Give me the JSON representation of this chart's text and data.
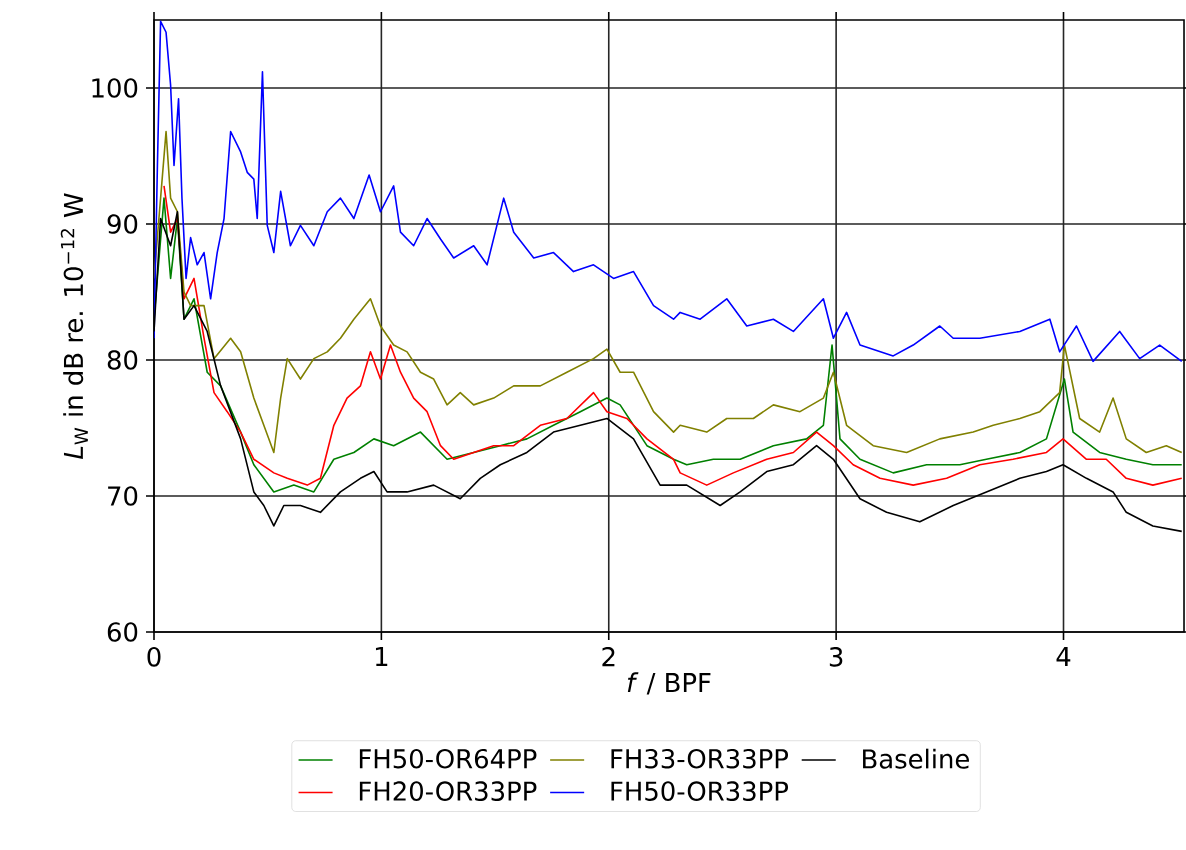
{
  "chart_data": {
    "type": "line",
    "xlabel": "*f* / BPF",
    "ylabel": "*L*$_{W}$ in dB re. 10$^{−12}$ W",
    "xlim": [
      0,
      4.53
    ],
    "ylim": [
      60,
      105
    ],
    "xticks": [
      0,
      1,
      2,
      3,
      4
    ],
    "yticks": [
      60,
      70,
      80,
      90,
      100
    ],
    "grid": true,
    "legend": "bottom",
    "marker": "none",
    "line_style": "solid",
    "series": [
      {
        "name": "FH50-OR64PP",
        "color": "#008000",
        "x": [
          0,
          0.044,
          0.073,
          0.103,
          0.132,
          0.176,
          0.234,
          0.293,
          0.381,
          0.439,
          0.527,
          0.615,
          0.703,
          0.791,
          0.879,
          0.967,
          1.054,
          1.172,
          1.289,
          1.406,
          1.523,
          1.64,
          1.757,
          1.875,
          1.992,
          2.05,
          2.168,
          2.285,
          2.343,
          2.46,
          2.578,
          2.724,
          2.87,
          2.944,
          2.982,
          3.017,
          3.105,
          3.251,
          3.398,
          3.544,
          3.661,
          3.808,
          3.925,
          4.004,
          4.042,
          4.159,
          4.276,
          4.393,
          4.52
        ],
        "values": [
          83,
          91.9,
          86,
          90.4,
          83,
          84.5,
          79.1,
          78.1,
          74.7,
          72.3,
          70.3,
          70.8,
          70.3,
          72.7,
          73.2,
          74.2,
          73.7,
          74.7,
          72.7,
          73.2,
          73.7,
          74.2,
          75.2,
          76.2,
          77.2,
          76.7,
          73.7,
          72.7,
          72.3,
          72.7,
          72.7,
          73.7,
          74.2,
          75.2,
          81.1,
          74.2,
          72.7,
          71.7,
          72.3,
          72.3,
          72.7,
          73.2,
          74.2,
          78.6,
          74.7,
          73.2,
          72.7,
          72.3,
          72.3
        ]
      },
      {
        "name": "FH20-OR33PP",
        "color": "#ff0000",
        "x": [
          0.044,
          0.073,
          0.103,
          0.132,
          0.176,
          0.22,
          0.264,
          0.322,
          0.381,
          0.439,
          0.527,
          0.586,
          0.674,
          0.732,
          0.791,
          0.849,
          0.908,
          0.952,
          0.996,
          1.04,
          1.084,
          1.142,
          1.201,
          1.26,
          1.318,
          1.406,
          1.494,
          1.582,
          1.699,
          1.816,
          1.933,
          1.992,
          2.08,
          2.168,
          2.285,
          2.314,
          2.431,
          2.548,
          2.695,
          2.812,
          2.914,
          2.988,
          3.075,
          3.193,
          3.339,
          3.486,
          3.632,
          3.778,
          3.925,
          3.998,
          4.101,
          4.188,
          4.276,
          4.393,
          4.52
        ],
        "values": [
          92.8,
          89.4,
          90.4,
          84.5,
          86,
          81.6,
          77.6,
          76.2,
          74.7,
          72.7,
          71.7,
          71.3,
          70.8,
          71.3,
          75.2,
          77.2,
          78.1,
          80.6,
          78.6,
          81.1,
          79.1,
          77.2,
          76.2,
          73.7,
          72.7,
          73.2,
          73.7,
          73.7,
          75.2,
          75.7,
          77.6,
          76.2,
          75.7,
          74.2,
          72.7,
          71.7,
          70.8,
          71.7,
          72.7,
          73.2,
          74.7,
          73.7,
          72.3,
          71.3,
          70.8,
          71.3,
          72.3,
          72.7,
          73.2,
          74.2,
          72.7,
          72.7,
          71.3,
          70.8,
          71.3
        ]
      },
      {
        "name": "FH33-OR33PP",
        "color": "#808000",
        "x": [
          0,
          0.029,
          0.053,
          0.073,
          0.103,
          0.132,
          0.161,
          0.22,
          0.264,
          0.337,
          0.381,
          0.439,
          0.483,
          0.527,
          0.557,
          0.586,
          0.644,
          0.703,
          0.762,
          0.82,
          0.879,
          0.952,
          0.996,
          1.054,
          1.113,
          1.172,
          1.23,
          1.289,
          1.347,
          1.406,
          1.494,
          1.582,
          1.699,
          1.816,
          1.933,
          1.992,
          2.05,
          2.109,
          2.197,
          2.285,
          2.314,
          2.431,
          2.519,
          2.636,
          2.724,
          2.841,
          2.944,
          2.988,
          3.046,
          3.163,
          3.31,
          3.456,
          3.603,
          3.691,
          3.808,
          3.896,
          3.983,
          4.004,
          4.071,
          4.159,
          4.218,
          4.276,
          4.364,
          4.452,
          4.52
        ],
        "values": [
          86,
          91.9,
          96.8,
          91.9,
          90.9,
          85,
          84,
          84,
          80.1,
          81.6,
          80.6,
          77.2,
          75.2,
          73.2,
          77.2,
          80.1,
          78.6,
          80.1,
          80.6,
          81.6,
          83,
          84.5,
          82.5,
          81.1,
          80.6,
          79.1,
          78.6,
          76.7,
          77.6,
          76.7,
          77.2,
          78.1,
          78.1,
          79.1,
          80.1,
          80.8,
          79.1,
          79.1,
          76.2,
          74.7,
          75.2,
          74.7,
          75.7,
          75.7,
          76.7,
          76.2,
          77.2,
          79.1,
          75.2,
          73.7,
          73.2,
          74.2,
          74.7,
          75.2,
          75.7,
          76.2,
          77.6,
          81.1,
          75.7,
          74.7,
          77.2,
          74.2,
          73.2,
          73.7,
          73.2
        ]
      },
      {
        "name": "FH50-OR33PP",
        "color": "#0000ff",
        "x": [
          0,
          0.015,
          0.029,
          0.053,
          0.073,
          0.088,
          0.108,
          0.123,
          0.141,
          0.161,
          0.19,
          0.22,
          0.249,
          0.278,
          0.308,
          0.337,
          0.381,
          0.41,
          0.439,
          0.454,
          0.477,
          0.498,
          0.527,
          0.557,
          0.6,
          0.644,
          0.703,
          0.762,
          0.82,
          0.879,
          0.946,
          0.996,
          1.054,
          1.084,
          1.142,
          1.201,
          1.26,
          1.318,
          1.406,
          1.465,
          1.538,
          1.582,
          1.67,
          1.757,
          1.845,
          1.933,
          2.021,
          2.109,
          2.197,
          2.285,
          2.314,
          2.402,
          2.519,
          2.607,
          2.724,
          2.812,
          2.944,
          2.988,
          3.046,
          3.105,
          3.251,
          3.339,
          3.456,
          3.515,
          3.632,
          3.808,
          3.94,
          3.983,
          4.057,
          4.13,
          4.247,
          4.335,
          4.423,
          4.52
        ],
        "values": [
          81.6,
          94.3,
          104.9,
          104.1,
          100.2,
          94.3,
          99.2,
          91.9,
          86,
          89,
          87,
          87.9,
          84.5,
          87.9,
          90.4,
          96.8,
          95.3,
          93.8,
          93.3,
          90.4,
          101.2,
          89.9,
          87.9,
          92.4,
          88.4,
          89.9,
          88.4,
          90.9,
          91.9,
          90.4,
          93.6,
          90.9,
          92.8,
          89.4,
          88.4,
          90.4,
          88.9,
          87.5,
          88.4,
          87,
          91.9,
          89.4,
          87.5,
          87.9,
          86.5,
          87,
          86,
          86.5,
          84,
          83,
          83.5,
          83,
          84.5,
          82.5,
          83,
          82.1,
          84.5,
          81.6,
          83.5,
          81.1,
          80.3,
          81.1,
          82.5,
          81.6,
          81.6,
          82.1,
          83,
          80.6,
          82.5,
          79.9,
          82.1,
          80.1,
          81.1,
          79.9
        ]
      },
      {
        "name": "Baseline",
        "color": "#000000",
        "x": [
          0,
          0.029,
          0.073,
          0.103,
          0.132,
          0.176,
          0.234,
          0.293,
          0.381,
          0.439,
          0.483,
          0.527,
          0.571,
          0.644,
          0.732,
          0.82,
          0.908,
          0.967,
          1.025,
          1.113,
          1.23,
          1.347,
          1.435,
          1.523,
          1.64,
          1.757,
          1.875,
          1.992,
          2.109,
          2.226,
          2.285,
          2.343,
          2.49,
          2.578,
          2.695,
          2.812,
          2.914,
          2.988,
          3.105,
          3.222,
          3.368,
          3.515,
          3.661,
          3.808,
          3.925,
          3.998,
          4.101,
          4.218,
          4.276,
          4.393,
          4.52
        ],
        "values": [
          82.1,
          90.4,
          88.4,
          90.9,
          83,
          84,
          82.1,
          78.1,
          74.2,
          70.3,
          69.3,
          67.8,
          69.3,
          69.3,
          68.8,
          70.3,
          71.3,
          71.8,
          70.3,
          70.3,
          70.8,
          69.8,
          71.3,
          72.3,
          73.2,
          74.7,
          75.2,
          75.7,
          74.2,
          70.8,
          70.8,
          70.8,
          69.3,
          70.3,
          71.8,
          72.3,
          73.7,
          72.7,
          69.8,
          68.8,
          68.1,
          69.3,
          70.3,
          71.3,
          71.8,
          72.3,
          71.3,
          70.3,
          68.8,
          67.8,
          67.4
        ]
      }
    ]
  }
}
